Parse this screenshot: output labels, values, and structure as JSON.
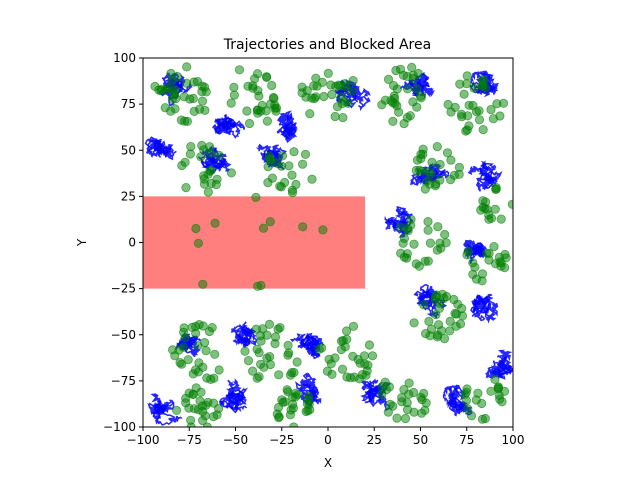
{
  "chart_data": {
    "type": "scatter",
    "title": "Trajectories and Blocked Area",
    "xlabel": "X",
    "ylabel": "Y",
    "xlim": [
      -100,
      100
    ],
    "ylim": [
      -100,
      100
    ],
    "grid": false,
    "x_ticks": [
      -100,
      -75,
      -50,
      -25,
      0,
      25,
      50,
      75,
      100
    ],
    "y_ticks": [
      -100,
      -75,
      -50,
      -25,
      0,
      25,
      50,
      75,
      100
    ],
    "x_tick_labels": [
      "−100",
      "−75",
      "−50",
      "−25",
      "0",
      "25",
      "50",
      "75",
      "100"
    ],
    "y_tick_labels": [
      "−100",
      "−75",
      "−50",
      "−25",
      "0",
      "25",
      "50",
      "75",
      "100"
    ],
    "blocked_area": {
      "x": [
        -100,
        20
      ],
      "y": [
        -25,
        25
      ],
      "color": "#ff0000",
      "opacity": 0.5
    },
    "series": [
      {
        "kind": "trajectory-line",
        "color": "#0000ff",
        "clusters": [
          {
            "center": [
              -85,
              85
            ],
            "spread": 12
          },
          {
            "center": [
              -55,
              65
            ],
            "spread": 14
          },
          {
            "center": [
              -20,
              62
            ],
            "spread": 12
          },
          {
            "center": [
              10,
              80
            ],
            "spread": 12
          },
          {
            "center": [
              -90,
              50
            ],
            "spread": 8
          },
          {
            "center": [
              -60,
              45
            ],
            "spread": 10
          },
          {
            "center": [
              -30,
              45
            ],
            "spread": 9
          },
          {
            "center": [
              50,
              85
            ],
            "spread": 12
          },
          {
            "center": [
              85,
              85
            ],
            "spread": 12
          },
          {
            "center": [
              55,
              40
            ],
            "spread": 12
          },
          {
            "center": [
              85,
              35
            ],
            "spread": 12
          },
          {
            "center": [
              40,
              10
            ],
            "spread": 10
          },
          {
            "center": [
              80,
              -5
            ],
            "spread": 10
          },
          {
            "center": [
              55,
              -30
            ],
            "spread": 12
          },
          {
            "center": [
              85,
              -35
            ],
            "spread": 12
          },
          {
            "center": [
              -75,
              -55
            ],
            "spread": 12
          },
          {
            "center": [
              -45,
              -50
            ],
            "spread": 12
          },
          {
            "center": [
              -10,
              -55
            ],
            "spread": 12
          },
          {
            "center": [
              -90,
              -90
            ],
            "spread": 10
          },
          {
            "center": [
              -50,
              -85
            ],
            "spread": 12
          },
          {
            "center": [
              -10,
              -80
            ],
            "spread": 12
          },
          {
            "center": [
              25,
              -80
            ],
            "spread": 10
          },
          {
            "center": [
              70,
              -85
            ],
            "spread": 12
          },
          {
            "center": [
              95,
              -65
            ],
            "spread": 8
          }
        ]
      },
      {
        "kind": "scatter-points",
        "color": "#008000",
        "opacity": 0.5,
        "clusters": [
          {
            "center": [
              -80,
              80
            ],
            "spread": 16,
            "n": 35
          },
          {
            "center": [
              -40,
              80
            ],
            "spread": 16,
            "n": 30
          },
          {
            "center": [
              0,
              80
            ],
            "spread": 16,
            "n": 30
          },
          {
            "center": [
              40,
              80
            ],
            "spread": 16,
            "n": 30
          },
          {
            "center": [
              80,
              75
            ],
            "spread": 16,
            "n": 30
          },
          {
            "center": [
              -70,
              40
            ],
            "spread": 14,
            "n": 20
          },
          {
            "center": [
              -20,
              40
            ],
            "spread": 14,
            "n": 20
          },
          {
            "center": [
              60,
              40
            ],
            "spread": 14,
            "n": 25
          },
          {
            "center": [
              90,
              20
            ],
            "spread": 10,
            "n": 15
          },
          {
            "center": [
              50,
              0
            ],
            "spread": 14,
            "n": 25
          },
          {
            "center": [
              85,
              -10
            ],
            "spread": 12,
            "n": 20
          },
          {
            "center": [
              60,
              -40
            ],
            "spread": 14,
            "n": 30
          },
          {
            "center": [
              -70,
              -60
            ],
            "spread": 16,
            "n": 30
          },
          {
            "center": [
              -30,
              -60
            ],
            "spread": 16,
            "n": 30
          },
          {
            "center": [
              10,
              -60
            ],
            "spread": 16,
            "n": 30
          },
          {
            "center": [
              -70,
              -90
            ],
            "spread": 12,
            "n": 25
          },
          {
            "center": [
              -20,
              -90
            ],
            "spread": 12,
            "n": 25
          },
          {
            "center": [
              40,
              -85
            ],
            "spread": 14,
            "n": 25
          },
          {
            "center": [
              85,
              -85
            ],
            "spread": 12,
            "n": 20
          },
          {
            "center": [
              -40,
              0
            ],
            "spread": 40,
            "n": 14
          }
        ]
      }
    ]
  }
}
